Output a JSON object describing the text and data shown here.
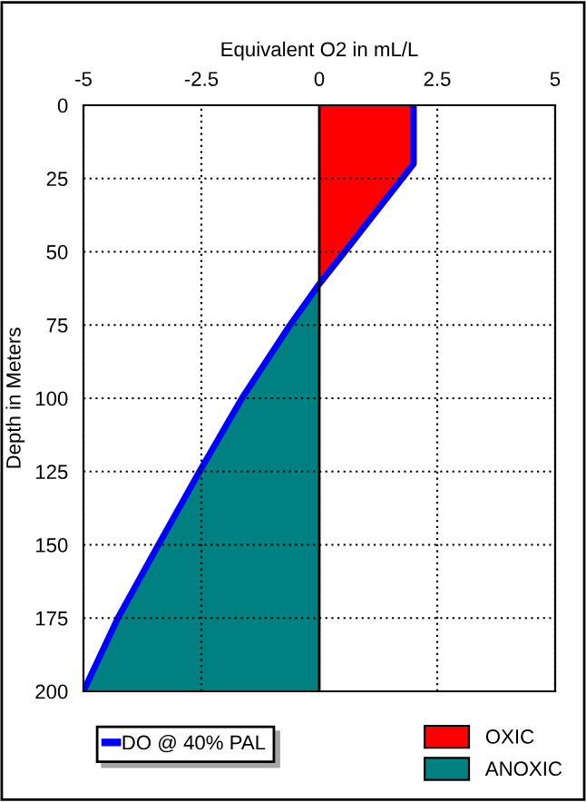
{
  "chart_data": {
    "type": "area",
    "xlabel": "Equivalent O2 in mL/L",
    "ylabel": "Depth in Meters",
    "xlim": [
      -5,
      5
    ],
    "xticks": [
      -5,
      -2.5,
      0,
      2.5,
      5
    ],
    "ylim": [
      200,
      0
    ],
    "yticks": [
      0,
      25,
      50,
      75,
      100,
      125,
      150,
      175,
      200
    ],
    "grid": true,
    "legend": "bottom",
    "line_style": "solid",
    "marker": "none",
    "series": [
      {
        "name": "OXIC",
        "color": "#ff0000",
        "x": [
          0,
          2,
          2,
          0.54,
          0
        ],
        "values": [
          0,
          0,
          20,
          50,
          61
        ]
      },
      {
        "name": "ANOXIC",
        "color": "#008080",
        "x": [
          0,
          -0.62,
          -1.64,
          -2.54,
          -3.41,
          -4.27,
          -5,
          0
        ],
        "values": [
          61,
          75,
          100,
          125,
          150,
          175,
          200,
          200
        ]
      },
      {
        "name": "DO @ 40% PAL",
        "type": "line",
        "color": "#0000ff",
        "x": [
          2,
          2,
          0.54,
          0,
          -0.62,
          -1.64,
          -2.54,
          -3.41,
          -4.27,
          -5
        ],
        "values": [
          0,
          20,
          50,
          61,
          75,
          100,
          125,
          150,
          175,
          200
        ]
      }
    ]
  }
}
